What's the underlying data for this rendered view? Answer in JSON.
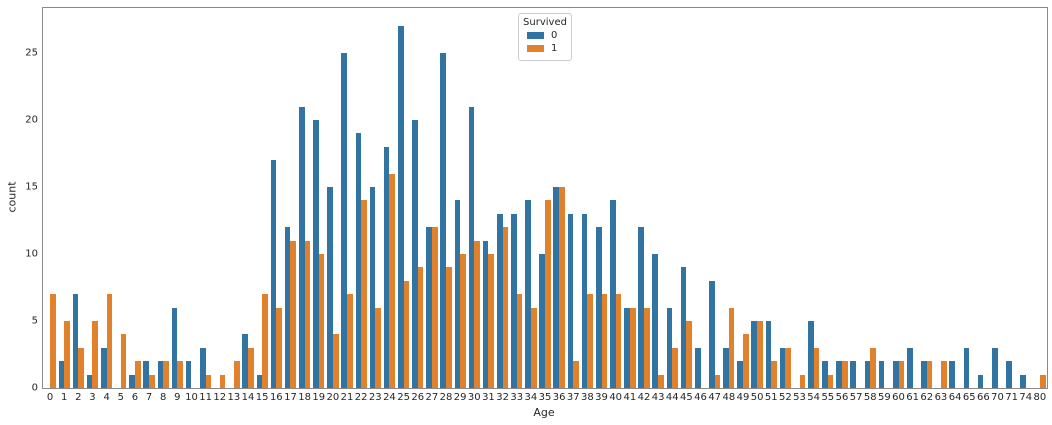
{
  "chart_data": {
    "type": "bar",
    "title": "",
    "xlabel": "Age",
    "ylabel": "count",
    "grid": false,
    "legend": {
      "title": "Survived",
      "position": "upper center"
    },
    "ylim": [
      0,
      28.35
    ],
    "yticks": [
      0,
      5,
      10,
      15,
      20,
      25
    ],
    "categories": [
      "0",
      "1",
      "2",
      "3",
      "4",
      "5",
      "6",
      "7",
      "8",
      "9",
      "10",
      "11",
      "12",
      "13",
      "14",
      "15",
      "16",
      "17",
      "18",
      "19",
      "20",
      "21",
      "22",
      "23",
      "24",
      "25",
      "26",
      "27",
      "28",
      "29",
      "30",
      "31",
      "32",
      "33",
      "34",
      "35",
      "36",
      "37",
      "38",
      "39",
      "40",
      "41",
      "42",
      "43",
      "44",
      "45",
      "46",
      "47",
      "48",
      "49",
      "50",
      "51",
      "52",
      "53",
      "54",
      "55",
      "56",
      "57",
      "58",
      "59",
      "60",
      "61",
      "62",
      "63",
      "64",
      "65",
      "66",
      "70",
      "71",
      "74",
      "80"
    ],
    "series": [
      {
        "name": "0",
        "color": "#3274a1",
        "values": [
          0,
          2,
          7,
          1,
          3,
          0,
          1,
          2,
          2,
          6,
          2,
          3,
          0,
          0,
          4,
          1,
          17,
          12,
          21,
          20,
          15,
          25,
          19,
          15,
          18,
          27,
          20,
          12,
          25,
          14,
          21,
          11,
          13,
          13,
          14,
          10,
          15,
          13,
          13,
          12,
          14,
          6,
          12,
          10,
          6,
          9,
          3,
          8,
          3,
          2,
          5,
          5,
          3,
          0,
          5,
          2,
          2,
          2,
          2,
          2,
          2,
          3,
          2,
          0,
          2,
          3,
          1,
          3,
          2,
          1,
          0
        ]
      },
      {
        "name": "1",
        "color": "#e1812c",
        "values": [
          7,
          5,
          3,
          5,
          7,
          4,
          2,
          1,
          2,
          2,
          0,
          1,
          1,
          2,
          3,
          7,
          6,
          11,
          11,
          10,
          4,
          7,
          14,
          6,
          16,
          8,
          9,
          12,
          9,
          10,
          11,
          10,
          12,
          7,
          6,
          14,
          15,
          2,
          7,
          7,
          7,
          6,
          6,
          1,
          3,
          5,
          0,
          1,
          6,
          4,
          5,
          2,
          3,
          1,
          3,
          1,
          2,
          0,
          3,
          0,
          2,
          0,
          2,
          2,
          0,
          0,
          0,
          0,
          0,
          0,
          1
        ]
      }
    ]
  }
}
